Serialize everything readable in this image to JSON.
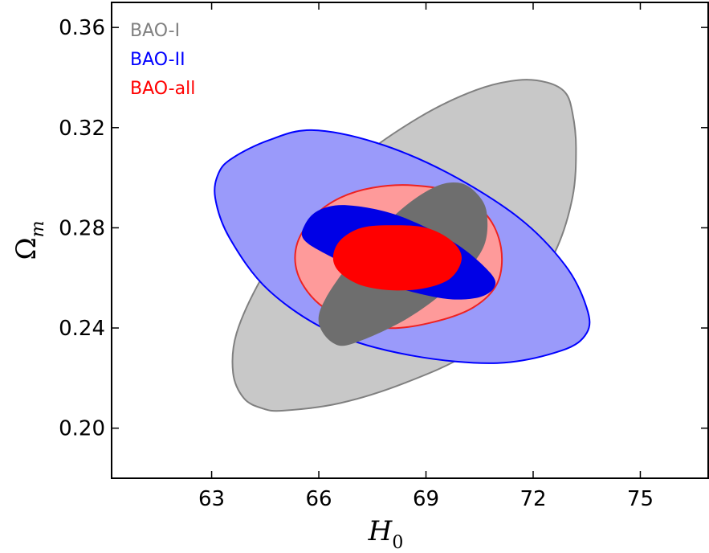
{
  "chart_data": {
    "type": "contour",
    "xlabel": {
      "main": "H",
      "sub": "0"
    },
    "ylabel": {
      "main": "Ω",
      "sub": "m"
    },
    "xlim": [
      60.2,
      76.9
    ],
    "ylim": [
      0.18,
      0.37
    ],
    "xticks": [
      63,
      66,
      69,
      72,
      75
    ],
    "yticks": [
      0.2,
      0.24,
      0.28,
      0.32,
      0.36
    ],
    "xtick_labels": [
      "63",
      "66",
      "69",
      "72",
      "75"
    ],
    "ytick_labels": [
      "0.20",
      "0.24",
      "0.28",
      "0.32",
      "0.36"
    ],
    "grid": false,
    "legend_position": "top-left",
    "series": [
      {
        "name": "BAO-I",
        "color": "#808080",
        "outer_fill": "#c8c8c8",
        "inner_fill": "#6e6e6e",
        "outer_line": "#808080",
        "contour_outer": [
          [
            65.0,
            0.207
          ],
          [
            66.6,
            0.21
          ],
          [
            68.4,
            0.218
          ],
          [
            70.2,
            0.23
          ],
          [
            71.6,
            0.248
          ],
          [
            72.6,
            0.27
          ],
          [
            73.1,
            0.292
          ],
          [
            73.2,
            0.312
          ],
          [
            73.1,
            0.326
          ],
          [
            72.9,
            0.334
          ],
          [
            72.4,
            0.338
          ],
          [
            71.6,
            0.339
          ],
          [
            70.4,
            0.335
          ],
          [
            68.8,
            0.324
          ],
          [
            67.0,
            0.306
          ],
          [
            65.5,
            0.284
          ],
          [
            64.4,
            0.26
          ],
          [
            63.7,
            0.238
          ],
          [
            63.6,
            0.222
          ],
          [
            63.9,
            0.212
          ],
          [
            64.4,
            0.208
          ]
        ],
        "contour_inner": [
          [
            66.0,
            0.242
          ],
          [
            66.4,
            0.234
          ],
          [
            67.0,
            0.234
          ],
          [
            68.5,
            0.244
          ],
          [
            69.8,
            0.258
          ],
          [
            70.6,
            0.272
          ],
          [
            70.7,
            0.286
          ],
          [
            70.4,
            0.294
          ],
          [
            69.9,
            0.298
          ],
          [
            69.2,
            0.296
          ],
          [
            68.2,
            0.286
          ],
          [
            67.0,
            0.268
          ],
          [
            66.2,
            0.252
          ]
        ]
      },
      {
        "name": "BAO-II",
        "color": "#0000ff",
        "outer_fill": "#9a9afa",
        "inner_fill": "#0000e6",
        "outer_line": "#0000ff",
        "contour_outer": [
          [
            63.2,
            0.302
          ],
          [
            63.6,
            0.308
          ],
          [
            64.6,
            0.315
          ],
          [
            65.8,
            0.319
          ],
          [
            67.6,
            0.314
          ],
          [
            69.6,
            0.302
          ],
          [
            71.6,
            0.284
          ],
          [
            72.9,
            0.265
          ],
          [
            73.5,
            0.248
          ],
          [
            73.5,
            0.238
          ],
          [
            72.8,
            0.231
          ],
          [
            71.0,
            0.226
          ],
          [
            68.6,
            0.229
          ],
          [
            66.4,
            0.238
          ],
          [
            64.6,
            0.255
          ],
          [
            63.5,
            0.276
          ],
          [
            63.1,
            0.292
          ]
        ],
        "contour_inner": [
          [
            65.6,
            0.281
          ],
          [
            66.0,
            0.287
          ],
          [
            66.8,
            0.289
          ],
          [
            68.2,
            0.285
          ],
          [
            69.8,
            0.274
          ],
          [
            70.8,
            0.262
          ],
          [
            70.9,
            0.256
          ],
          [
            70.4,
            0.252
          ],
          [
            69.4,
            0.252
          ],
          [
            67.8,
            0.258
          ],
          [
            66.4,
            0.268
          ],
          [
            65.6,
            0.275
          ]
        ]
      },
      {
        "name": "BAO-all",
        "color": "#ff0000",
        "outer_fill": "#fe9a9a",
        "inner_fill": "#ff0000",
        "outer_line": "#ee2222",
        "contour_outer": [
          [
            67.5,
            0.296
          ],
          [
            68.6,
            0.297
          ],
          [
            69.8,
            0.294
          ],
          [
            70.7,
            0.285
          ],
          [
            71.1,
            0.272
          ],
          [
            71.0,
            0.258
          ],
          [
            70.3,
            0.248
          ],
          [
            69.1,
            0.242
          ],
          [
            67.9,
            0.24
          ],
          [
            66.7,
            0.244
          ],
          [
            65.9,
            0.251
          ],
          [
            65.4,
            0.262
          ],
          [
            65.4,
            0.274
          ],
          [
            65.9,
            0.285
          ],
          [
            66.6,
            0.292
          ]
        ],
        "contour_inner": [
          [
            68.1,
            0.281
          ],
          [
            69.0,
            0.28
          ],
          [
            69.7,
            0.275
          ],
          [
            70.0,
            0.268
          ],
          [
            69.7,
            0.26
          ],
          [
            69.0,
            0.256
          ],
          [
            68.1,
            0.255
          ],
          [
            67.2,
            0.257
          ],
          [
            66.6,
            0.262
          ],
          [
            66.4,
            0.268
          ],
          [
            66.6,
            0.275
          ],
          [
            67.2,
            0.28
          ]
        ]
      }
    ]
  }
}
